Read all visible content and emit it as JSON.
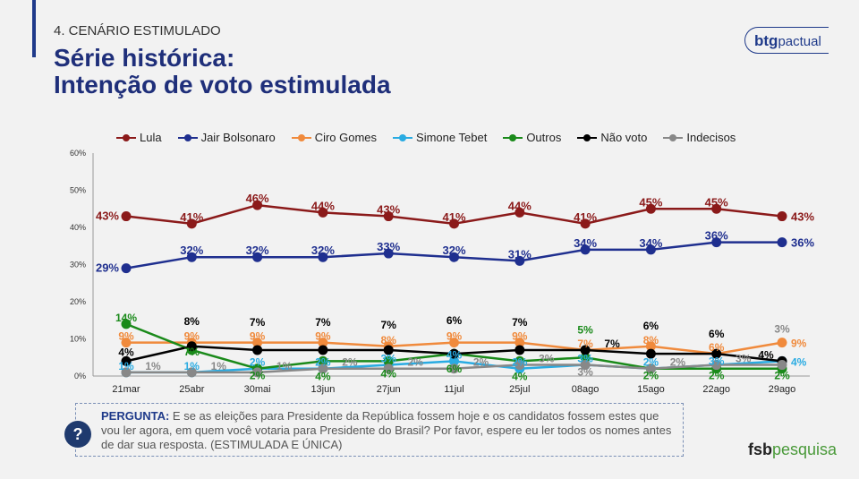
{
  "header": {
    "section": "4. CENÁRIO ESTIMULADO",
    "title_line1": "Série histórica:",
    "title_line2": "Intenção de voto estimulada",
    "logo_bold": "btg",
    "logo_rest": "pactual"
  },
  "question": {
    "label": "PERGUNTA:",
    "text": " E se as eleições para Presidente da República fossem hoje e os candidatos fossem estes que vou ler agora, em quem você votaria para Presidente do Brasil? Por favor, espere eu ler todos os nomes antes de dar sua resposta. (ESTIMULADA E ÚNICA)",
    "icon": "question-icon"
  },
  "footer": {
    "logo_bold": "fsb",
    "logo_rest": "pesquisa"
  },
  "chart_data": {
    "type": "line",
    "categories": [
      "21mar",
      "25abr",
      "30mai",
      "13jun",
      "27jun",
      "11jul",
      "25jul",
      "08ago",
      "15ago",
      "22ago",
      "29ago"
    ],
    "ylim": [
      0,
      60
    ],
    "yticks": [
      "0%",
      "10%",
      "20%",
      "30%",
      "40%",
      "50%",
      "60%"
    ],
    "legend_position": "top",
    "grid": false,
    "series": [
      {
        "name": "Lula",
        "color": "#8b1a1a",
        "values": [
          43,
          41,
          46,
          44,
          43,
          41,
          44,
          41,
          45,
          45,
          43
        ]
      },
      {
        "name": "Jair Bolsonaro",
        "color": "#1f2f8f",
        "values": [
          29,
          32,
          32,
          32,
          33,
          32,
          31,
          34,
          34,
          36,
          36
        ]
      },
      {
        "name": "Ciro Gomes",
        "color": "#f08a3c",
        "values": [
          9,
          9,
          9,
          9,
          8,
          9,
          9,
          7,
          8,
          6,
          9
        ]
      },
      {
        "name": "Simone Tebet",
        "color": "#29abe2",
        "values": [
          1,
          1,
          2,
          2,
          3,
          4,
          2,
          3,
          2,
          3,
          4
        ]
      },
      {
        "name": "Outros",
        "color": "#1a8a1a",
        "values": [
          14,
          7,
          2,
          4,
          4,
          6,
          4,
          5,
          2,
          2,
          2
        ]
      },
      {
        "name": "Não voto",
        "color": "#000000",
        "values": [
          4,
          8,
          7,
          7,
          7,
          6,
          7,
          7,
          6,
          6,
          4
        ]
      },
      {
        "name": "Indecisos",
        "color": "#888888",
        "values": [
          1,
          1,
          1,
          2,
          2,
          2,
          3,
          3,
          2,
          3,
          3
        ]
      }
    ]
  }
}
